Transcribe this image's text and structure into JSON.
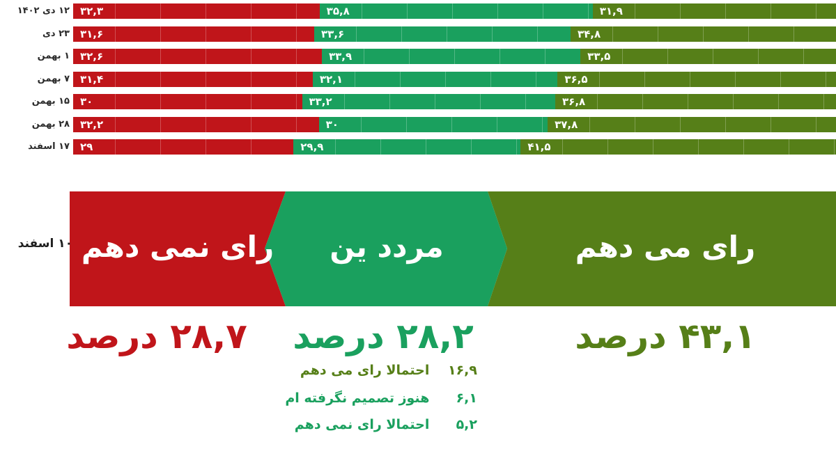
{
  "colors": {
    "oppose": "#c0151a",
    "undecided": "#1aa05e",
    "support": "#567f18",
    "label_dark": "#2a2a2a"
  },
  "chart_data": {
    "type": "bar",
    "orientation": "horizontal-stacked-100",
    "categories": [
      "۱۲ دی ۱۴۰۲",
      "۲۳ دی",
      "۱ بهمن",
      "۷ بهمن",
      "۱۵ بهمن",
      "۲۸ بهمن",
      "۱۷ اسفند"
    ],
    "series": [
      {
        "values": [
          32.3,
          31.6,
          32.6,
          31.4,
          30,
          32.2,
          29
        ],
        "labels": [
          "۳۲,۳",
          "۳۱,۶",
          "۳۲,۶",
          "۳۱,۴",
          "۳۰",
          "۳۲,۲",
          "۲۹"
        ]
      },
      {
        "values": [
          35.8,
          33.6,
          33.9,
          32.1,
          33.2,
          30,
          29.9
        ],
        "labels": [
          "۳۵,۸",
          "۳۳,۶",
          "۳۳,۹",
          "۳۲,۱",
          "۳۳,۲",
          "۳۰",
          "۲۹,۹"
        ]
      },
      {
        "values": [
          31.9,
          34.8,
          33.5,
          36.5,
          36.8,
          37.8,
          41.5
        ],
        "labels": [
          "۳۱,۹",
          "۳۴,۸",
          "۳۳,۵",
          "۳۶,۵",
          "۳۶,۸",
          "۳۷,۸",
          "۴۱,۵"
        ]
      }
    ],
    "summary": {
      "date_label": "۱۰ اسفند",
      "bands": [
        {
          "title": "رای نمی دهم",
          "value": 28.7,
          "text": "۲۸,۷ درصد"
        },
        {
          "title": "مردد ین",
          "value": 28.2,
          "text": "۲۸,۲ درصد"
        },
        {
          "title": "رای می دهم",
          "value": 43.1,
          "text": "۴۳,۱ درصد"
        }
      ],
      "undecided_breakdown": [
        {
          "value": 16.9,
          "value_text": "۱۶,۹",
          "text": "احتمالا رای می دهم"
        },
        {
          "value": 6.1,
          "value_text": "۶,۱",
          "text": "هنوز تصمیم نگرفته ام"
        },
        {
          "value": 5.2,
          "value_text": "۵,۲",
          "text": "احتمالا رای نمی دهم"
        }
      ]
    }
  }
}
